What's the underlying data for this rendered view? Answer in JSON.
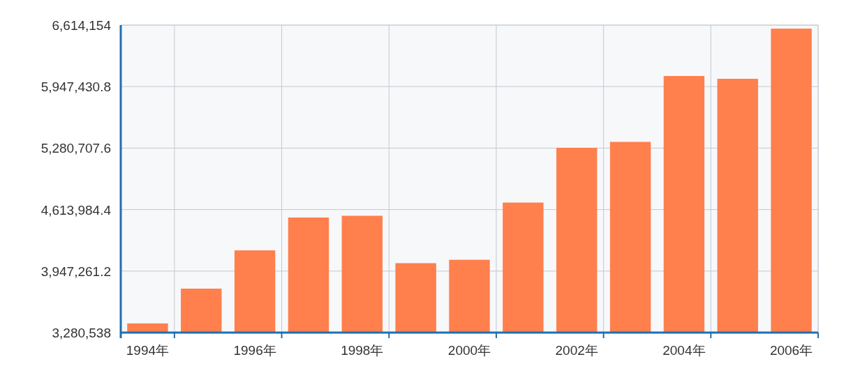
{
  "chart_data": {
    "type": "bar",
    "categories": [
      "1994年",
      null,
      "1996年",
      null,
      "1998年",
      null,
      "2000年",
      null,
      "2002年",
      null,
      "2004年",
      null,
      "2006年"
    ],
    "values": [
      3380000,
      3757000,
      4172000,
      4528000,
      4547000,
      4033000,
      4070000,
      4690000,
      5284000,
      5348000,
      6062000,
      6032000,
      6576000
    ],
    "color": "#ff7f4d",
    "ylim": [
      3280538,
      6614154
    ],
    "yticks": [
      {
        "value": 3280538,
        "label": "3,280,538"
      },
      {
        "value": 3947261.2,
        "label": "3,947,261.2"
      },
      {
        "value": 4613984.4,
        "label": "4,613,984.4"
      },
      {
        "value": 5280707.6,
        "label": "5,280,707.6"
      },
      {
        "value": 5947430.8,
        "label": "5,947,430.8"
      },
      {
        "value": 6614154,
        "label": "6,614,154"
      }
    ],
    "grid": true
  }
}
